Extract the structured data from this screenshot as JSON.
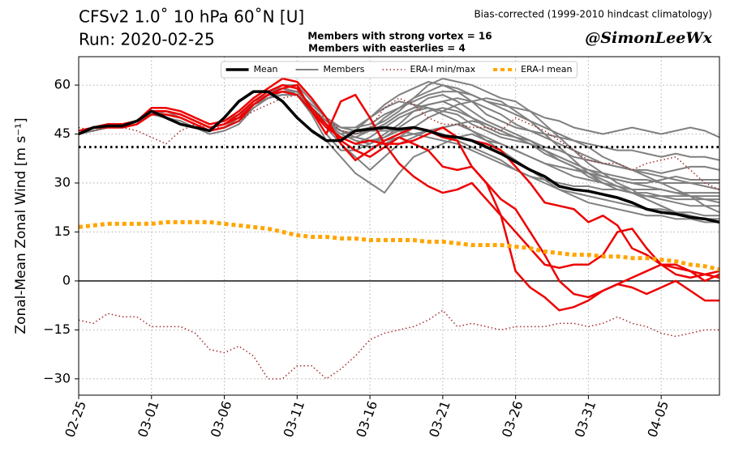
{
  "chart_data": {
    "type": "line",
    "title": "CFSv2 1.0˚ 10 hPa 60˚N [U]",
    "subtitle": "Run: 2020-02-25",
    "note": "Bias-corrected (1999-2010 hindcast climatology)",
    "credit": "@SimonLeeWx",
    "annotations": [
      {
        "text": "Members with strong vortex = 16",
        "color": "#0000ff"
      },
      {
        "text": "Members with easterlies = 4",
        "color": "#ff0000"
      }
    ],
    "ylabel": "Zonal-Mean Zonal Wind [m s⁻¹]",
    "categories": [
      "02-25",
      null,
      null,
      null,
      null,
      "03-01",
      null,
      null,
      null,
      null,
      "03-06",
      null,
      null,
      null,
      null,
      "03-11",
      null,
      null,
      null,
      null,
      "03-16",
      null,
      null,
      null,
      null,
      "03-21",
      null,
      null,
      null,
      null,
      "03-26",
      null,
      null,
      null,
      null,
      "03-31",
      null,
      null,
      null,
      null,
      "04-05",
      null,
      null,
      null,
      null
    ],
    "ylim": [
      -35,
      68.7
    ],
    "yticks": [
      {
        "value": -30,
        "label": "−30"
      },
      {
        "value": -15,
        "label": "−15"
      },
      0,
      15,
      30,
      45,
      60
    ],
    "grid": true,
    "zero_line": true,
    "hline": 41,
    "legend": "upper center",
    "series": [
      {
        "name": "Mean",
        "color": "#000000",
        "width": 3.5,
        "values": [
          45,
          47,
          47.5,
          47.5,
          49,
          52,
          50,
          48,
          47,
          46,
          50,
          55,
          58,
          58,
          55,
          50,
          46,
          43,
          43,
          46,
          46.5,
          47,
          46.5,
          47,
          46,
          44.5,
          44,
          43,
          41,
          39,
          36.5,
          34,
          32,
          29,
          28,
          27.5,
          26.5,
          25.5,
          24,
          22,
          21,
          20.5,
          19.5,
          19,
          18
        ]
      },
      {
        "name": "Members",
        "color": "#808080",
        "width": 2,
        "values": [
          45,
          47,
          48,
          47,
          48,
          52,
          52,
          51,
          49,
          47,
          48,
          50,
          55,
          57,
          60,
          60,
          55,
          50,
          47,
          47,
          50,
          54,
          57,
          59,
          61,
          60,
          59,
          57,
          55,
          54,
          53,
          52,
          50,
          49,
          47,
          46,
          45,
          46,
          47,
          46,
          45,
          46,
          47,
          46,
          44
        ]
      },
      {
        "color": "#808080",
        "width": 2,
        "values": [
          46,
          47,
          47,
          47,
          48,
          51,
          51,
          50,
          48,
          46,
          47,
          49,
          54,
          56,
          58,
          58,
          53,
          48,
          44,
          44,
          46,
          50,
          53,
          56,
          58,
          60,
          58,
          55,
          51,
          49,
          47,
          46,
          45,
          44,
          43,
          42,
          41,
          40,
          40,
          39,
          38,
          39,
          38,
          38,
          37
        ]
      },
      {
        "color": "#808080",
        "width": 2,
        "values": [
          45,
          47,
          48,
          48,
          49,
          52,
          52,
          51,
          49,
          47,
          48,
          50,
          55,
          58,
          59,
          57,
          52,
          45,
          40,
          40,
          42,
          45,
          48,
          52,
          54,
          55,
          53,
          50,
          47,
          45,
          44,
          43,
          41,
          40,
          38,
          37,
          36,
          35,
          34,
          34,
          33,
          34,
          35,
          35,
          34
        ]
      },
      {
        "color": "#808080",
        "width": 2,
        "values": [
          45,
          46,
          47,
          47,
          48,
          51,
          50,
          49,
          47,
          45,
          46,
          48,
          53,
          56,
          57,
          57,
          51,
          43,
          38,
          33,
          30,
          27,
          33,
          38,
          40,
          42,
          44,
          45,
          43,
          42,
          40,
          38,
          36,
          35,
          34,
          33,
          32,
          31,
          30,
          30,
          31,
          32,
          31,
          31,
          31
        ]
      },
      {
        "color": "#808080",
        "width": 2,
        "values": [
          46,
          47,
          48,
          48,
          49,
          53,
          53,
          52,
          50,
          48,
          49,
          51,
          55,
          58,
          59,
          58,
          53,
          48,
          45,
          46,
          50,
          53,
          55,
          54,
          53,
          52,
          51,
          48,
          46,
          44,
          43,
          42,
          40,
          38,
          36,
          34,
          33,
          32,
          31,
          31,
          30,
          30,
          30,
          30,
          30
        ]
      },
      {
        "color": "#808080",
        "width": 2,
        "values": [
          45,
          47,
          47,
          47,
          48,
          51,
          51,
          50,
          48,
          46,
          47,
          50,
          55,
          57,
          58,
          57,
          52,
          47,
          42,
          38,
          34,
          38,
          42,
          44,
          46,
          47,
          48,
          46,
          44,
          42,
          40,
          38,
          36,
          34,
          32,
          31,
          30,
          29,
          28,
          28,
          28,
          27,
          27,
          27,
          27
        ]
      },
      {
        "color": "#808080",
        "width": 2,
        "values": [
          45,
          46,
          47,
          47,
          48,
          51,
          52,
          50,
          48,
          46,
          47,
          49,
          54,
          56,
          57,
          57,
          52,
          48,
          46,
          45,
          46,
          48,
          51,
          53,
          56,
          57,
          55,
          52,
          49,
          47,
          45,
          43,
          40,
          37,
          35,
          32,
          30,
          28,
          27,
          26,
          26,
          25,
          25,
          25,
          25
        ]
      },
      {
        "color": "#808080",
        "width": 2,
        "values": [
          46,
          47,
          48,
          48,
          49,
          52,
          52,
          51,
          49,
          47,
          48,
          50,
          54,
          57,
          58,
          57,
          52,
          47,
          44,
          42,
          41,
          42,
          44,
          47,
          50,
          52,
          54,
          55,
          56,
          55,
          52,
          49,
          45,
          41,
          37,
          33,
          30,
          28,
          27,
          26,
          25,
          24,
          23,
          23,
          23
        ]
      },
      {
        "color": "#808080",
        "width": 2,
        "values": [
          45,
          47,
          47,
          47,
          48,
          52,
          52,
          51,
          49,
          47,
          48,
          50,
          55,
          57,
          58,
          57,
          53,
          49,
          46,
          44,
          43,
          44,
          46,
          47,
          46,
          45,
          43,
          41,
          39,
          37,
          34,
          32,
          30,
          28,
          27,
          26,
          25,
          24,
          23,
          22,
          22,
          21,
          21,
          20,
          20
        ]
      },
      {
        "color": "#808080",
        "width": 2,
        "values": [
          45,
          47,
          48,
          47,
          48,
          51,
          51,
          50,
          48,
          46,
          47,
          49,
          54,
          57,
          58,
          58,
          54,
          50,
          47,
          46,
          47,
          49,
          52,
          56,
          60,
          62,
          61,
          60,
          58,
          56,
          55,
          52,
          48,
          44,
          40,
          36,
          33,
          30,
          28,
          25,
          23,
          21,
          20,
          19,
          19
        ]
      },
      {
        "color": "#808080",
        "width": 2,
        "values": [
          46,
          47,
          47,
          47,
          48,
          52,
          51,
          50,
          48,
          46,
          47,
          49,
          53,
          56,
          57,
          57,
          52,
          48,
          46,
          44,
          43,
          43,
          44,
          45,
          46,
          47,
          48,
          49,
          48,
          46,
          44,
          42,
          39,
          37,
          35,
          33,
          31,
          29,
          27,
          25,
          23,
          21,
          20,
          19,
          18
        ]
      },
      {
        "color": "#808080",
        "width": 2,
        "values": [
          45,
          47,
          48,
          48,
          49,
          52,
          52,
          51,
          49,
          47,
          48,
          50,
          54,
          57,
          58,
          58,
          53,
          49,
          47,
          47,
          48,
          51,
          53,
          55,
          57,
          58,
          58,
          57,
          55,
          53,
          51,
          49,
          47,
          45,
          43,
          41,
          38,
          36,
          34,
          32,
          30,
          28,
          26,
          23,
          21
        ]
      },
      {
        "color": "#808080",
        "width": 2,
        "values": [
          45,
          46,
          47,
          47,
          48,
          51,
          51,
          50,
          48,
          46,
          47,
          49,
          54,
          56,
          57,
          57,
          52,
          48,
          45,
          43,
          42,
          44,
          47,
          50,
          52,
          53,
          52,
          50,
          48,
          46,
          44,
          42,
          40,
          38,
          36,
          34,
          32,
          31,
          30,
          29,
          28,
          27,
          26,
          25,
          24
        ]
      },
      {
        "color": "#808080",
        "width": 2,
        "values": [
          46,
          47,
          48,
          48,
          49,
          52,
          52,
          51,
          49,
          47,
          48,
          50,
          55,
          57,
          58,
          58,
          53,
          48,
          44,
          42,
          44,
          47,
          50,
          52,
          53,
          51,
          49,
          46,
          43,
          40,
          37,
          34,
          31,
          28,
          26,
          24,
          23,
          22,
          21,
          20,
          20,
          19,
          19,
          18,
          18
        ]
      },
      {
        "color": "#808080",
        "width": 2,
        "values": [
          45,
          47,
          47,
          47,
          48,
          51,
          51,
          50,
          48,
          46,
          47,
          49,
          54,
          57,
          58,
          58,
          53,
          49,
          46,
          45,
          46,
          48,
          51,
          53,
          54,
          55,
          56,
          55,
          53,
          51,
          48,
          46,
          44,
          42,
          40,
          38,
          36,
          35,
          34,
          33,
          32,
          31,
          30,
          29,
          28
        ]
      },
      {
        "color": "#808080",
        "width": 2,
        "values": [
          45,
          47,
          48,
          47,
          48,
          52,
          52,
          51,
          49,
          47,
          48,
          50,
          54,
          57,
          58,
          57,
          52,
          48,
          46,
          45,
          46,
          46,
          46,
          45,
          44,
          43,
          42,
          40,
          38,
          36,
          34,
          32,
          31,
          30,
          29,
          29,
          28,
          28,
          27,
          27,
          26,
          26,
          26,
          26,
          26
        ]
      },
      {
        "color": "#ee0000",
        "width": 2.5,
        "values": [
          45,
          47,
          48,
          48,
          49,
          52,
          52,
          51,
          49,
          47,
          48,
          51,
          55,
          58,
          60,
          59,
          53,
          48,
          43,
          40,
          38,
          41,
          44,
          42,
          40,
          35,
          34,
          35,
          30,
          20,
          3,
          -2,
          -5,
          -9,
          -8,
          -6,
          -3,
          -1,
          1,
          3,
          5,
          5,
          3,
          0,
          2
        ]
      },
      {
        "color": "#ee0000",
        "width": 2.5,
        "values": [
          45,
          47,
          48,
          48,
          49,
          53,
          53,
          52,
          50,
          48,
          49,
          52,
          56,
          59,
          62,
          61,
          56,
          50,
          42,
          37,
          40,
          43,
          45,
          47,
          46,
          44,
          43,
          35,
          30,
          25,
          22,
          15,
          8,
          0,
          -4,
          -5,
          -3,
          -1,
          -2,
          -4,
          -2,
          0,
          -3,
          -6,
          -6
        ]
      },
      {
        "color": "#ee0000",
        "width": 2.5,
        "values": [
          46,
          47,
          48,
          48,
          49,
          52,
          52,
          51,
          49,
          47,
          48,
          50,
          54,
          57,
          59,
          60,
          52,
          45,
          55,
          57,
          50,
          42,
          36,
          32,
          29,
          27,
          28,
          30,
          25,
          20,
          15,
          10,
          5,
          4,
          5,
          5,
          8,
          15,
          16,
          10,
          5,
          4,
          3,
          2,
          1
        ]
      },
      {
        "color": "#ee0000",
        "width": 2.5,
        "values": [
          45,
          47,
          47,
          47,
          48,
          51,
          51,
          50,
          48,
          46,
          47,
          49,
          54,
          57,
          58,
          57,
          52,
          47,
          44,
          42,
          43,
          42,
          42,
          43,
          45,
          47,
          44,
          43,
          42,
          40,
          35,
          30,
          24,
          23,
          22,
          18,
          20,
          17,
          10,
          8,
          5,
          2,
          1,
          2,
          3
        ]
      },
      {
        "name": "ERA-I min/max",
        "color": "#a52a2a",
        "width": 1.5,
        "style": "dotted",
        "values": [
          47,
          46,
          47,
          47,
          46,
          44,
          42,
          46,
          48,
          47,
          47,
          49,
          52,
          54,
          56,
          57,
          52,
          50,
          46,
          45,
          47,
          53,
          56,
          54,
          50,
          48,
          48,
          47,
          47,
          46,
          50,
          48,
          46,
          43,
          40,
          37,
          36,
          36,
          34,
          36,
          37,
          38,
          34,
          30,
          28
        ]
      },
      {
        "color": "#a52a2a",
        "width": 1.5,
        "style": "dotted",
        "values": [
          -12,
          -13,
          -10,
          -11,
          -11,
          -14,
          -14,
          -14,
          -16,
          -21,
          -22,
          -20,
          -23,
          -30,
          -30,
          -26,
          -26,
          -30,
          -27,
          -23,
          -18,
          -16,
          -15,
          -14,
          -12,
          -9,
          -14,
          -13,
          -14,
          -15,
          -14,
          -14,
          -14,
          -13,
          -13,
          -14,
          -13,
          -11,
          -13,
          -14,
          -16,
          -17,
          -16,
          -15,
          -15
        ]
      },
      {
        "name": "ERA-I mean",
        "color": "#ffa500",
        "width": 5,
        "style": "dashed",
        "values": [
          16.5,
          17,
          17.5,
          17.5,
          17.5,
          17.5,
          18,
          18,
          18,
          18,
          17.5,
          17,
          16.5,
          16,
          15,
          14,
          13.5,
          13.5,
          13,
          13,
          12.5,
          12.5,
          12.5,
          12.5,
          12,
          12,
          11.5,
          11,
          11,
          11,
          10.5,
          10,
          9,
          8.5,
          8,
          8,
          7.5,
          7.5,
          7,
          7,
          6.5,
          6,
          5,
          4.5,
          3.5
        ]
      }
    ]
  }
}
